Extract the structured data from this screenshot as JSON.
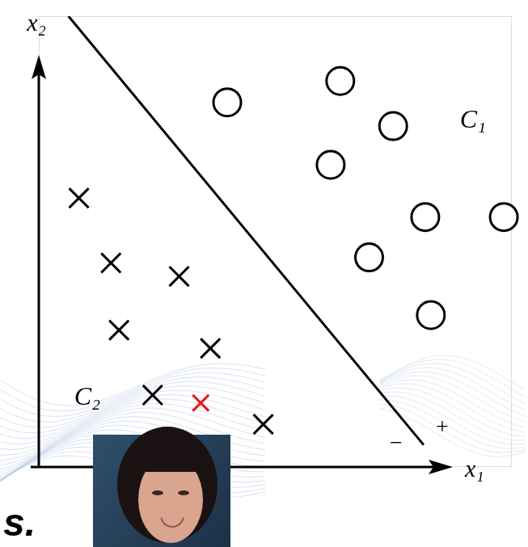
{
  "chart_data": {
    "type": "scatter",
    "xlabel": "x₁",
    "ylabel": "x₂",
    "xlim": [
      0,
      11.8
    ],
    "ylim": [
      0,
      11.4
    ],
    "tick_labels": false,
    "grid": false,
    "series": [
      {
        "name": "C₁",
        "marker": "circle",
        "color": "#000000",
        "x": [
          4.7,
          7.52,
          8.84,
          7.28,
          9.64,
          11.6,
          8.24,
          9.78
        ],
        "values": [
          9.22,
          9.76,
          8.62,
          7.64,
          6.32,
          6.32,
          5.3,
          3.84
        ]
      },
      {
        "name": "C₂",
        "marker": "x",
        "color": "#000000",
        "x": [
          1.0,
          1.8,
          3.5,
          2.0,
          4.28,
          2.84,
          5.6
        ],
        "values": [
          6.8,
          5.16,
          4.82,
          3.46,
          3.0,
          1.82,
          1.08
        ]
      },
      {
        "marker": "x",
        "color": "#e8141a",
        "x": [
          4.04
        ],
        "values": [
          1.62
        ]
      },
      {
        "type": "line",
        "marker": "none",
        "line_style": "solid",
        "color": "#000000",
        "x": [
          0.74,
          9.6
        ],
        "values": [
          11.4,
          0.56
        ]
      }
    ],
    "annotations": [
      "−",
      "+",
      "s."
    ]
  }
}
